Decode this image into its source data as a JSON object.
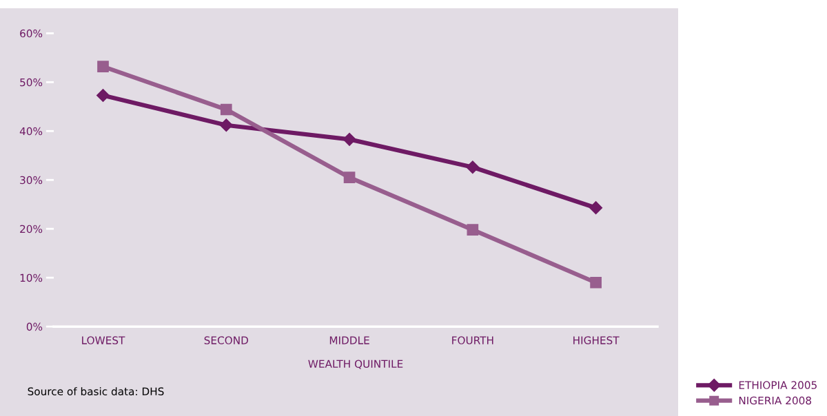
{
  "chart_data": {
    "type": "line",
    "xlabel": "WEALTH QUINTILE",
    "categories": [
      "LOWEST",
      "SECOND",
      "MIDDLE",
      "FOURTH",
      "HIGHEST"
    ],
    "series": [
      {
        "name": "ETHIOPIA 2005",
        "color": "#6e1a64",
        "marker": "diamond",
        "values": [
          47.3,
          41.2,
          38.3,
          32.6,
          24.3
        ]
      },
      {
        "name": "NIGERIA 2008",
        "color": "#985e8e",
        "marker": "square",
        "values": [
          53.2,
          44.4,
          30.5,
          19.8,
          9.0
        ]
      }
    ],
    "ylim": [
      0,
      60
    ],
    "yticks": [
      {
        "value": 0,
        "label": "0%"
      },
      {
        "value": 10,
        "label": "10%"
      },
      {
        "value": 20,
        "label": "20%"
      },
      {
        "value": 30,
        "label": "30%"
      },
      {
        "value": 40,
        "label": "40%"
      },
      {
        "value": 50,
        "label": "50%"
      },
      {
        "value": 60,
        "label": "60%"
      }
    ],
    "grid": false,
    "legend": "bottom right",
    "line_style": "solid",
    "annotations": [
      "Source of basic data: DHS"
    ]
  }
}
